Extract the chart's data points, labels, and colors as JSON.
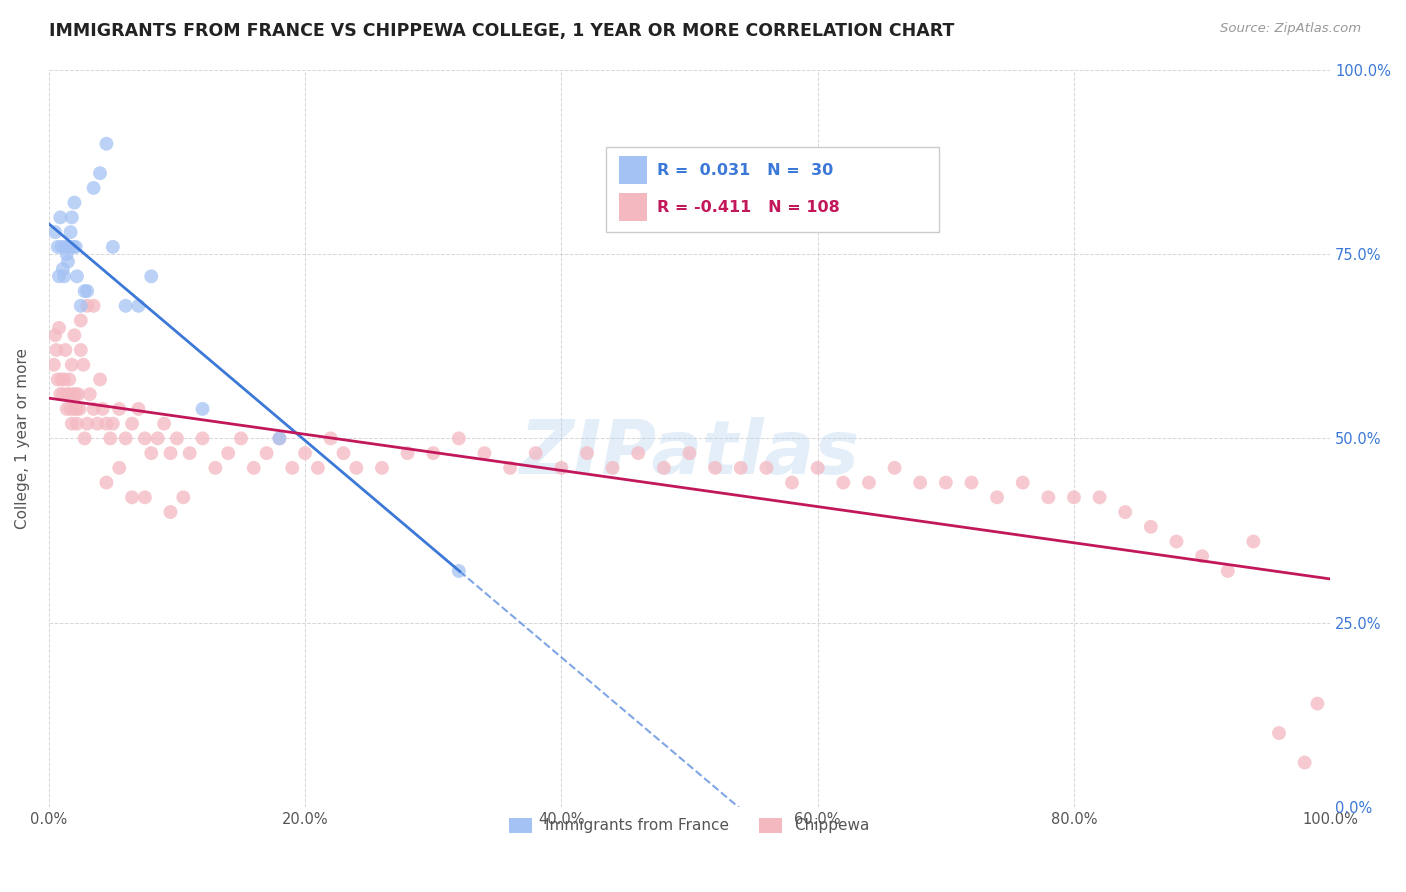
{
  "title": "IMMIGRANTS FROM FRANCE VS CHIPPEWA COLLEGE, 1 YEAR OR MORE CORRELATION CHART",
  "source": "Source: ZipAtlas.com",
  "ylabel": "College, 1 year or more",
  "watermark": "ZIPatlas",
  "blue_R": 0.031,
  "blue_N": 30,
  "pink_R": -0.411,
  "pink_N": 108,
  "blue_label": "Immigrants from France",
  "pink_label": "Chippewa",
  "blue_color": "#a4c2f4",
  "pink_color": "#f4b8c1",
  "blue_line_color": "#3c78d8",
  "pink_line_color": "#c2185b",
  "xmin": 0.0,
  "xmax": 1.0,
  "ymin": 0.0,
  "ymax": 1.0,
  "blue_scatter_x": [
    0.005,
    0.007,
    0.008,
    0.009,
    0.01,
    0.011,
    0.012,
    0.013,
    0.014,
    0.015,
    0.016,
    0.017,
    0.018,
    0.019,
    0.02,
    0.021,
    0.022,
    0.025,
    0.028,
    0.03,
    0.035,
    0.04,
    0.045,
    0.05,
    0.06,
    0.07,
    0.08,
    0.12,
    0.18,
    0.32
  ],
  "blue_scatter_y": [
    0.78,
    0.76,
    0.72,
    0.8,
    0.76,
    0.73,
    0.72,
    0.76,
    0.75,
    0.74,
    0.76,
    0.78,
    0.8,
    0.76,
    0.82,
    0.76,
    0.72,
    0.68,
    0.7,
    0.7,
    0.84,
    0.86,
    0.9,
    0.76,
    0.68,
    0.68,
    0.72,
    0.54,
    0.5,
    0.32
  ],
  "pink_scatter_x": [
    0.004,
    0.005,
    0.006,
    0.007,
    0.008,
    0.009,
    0.01,
    0.011,
    0.012,
    0.013,
    0.014,
    0.015,
    0.016,
    0.017,
    0.018,
    0.019,
    0.02,
    0.021,
    0.022,
    0.023,
    0.024,
    0.025,
    0.027,
    0.03,
    0.032,
    0.035,
    0.038,
    0.04,
    0.042,
    0.045,
    0.048,
    0.05,
    0.055,
    0.06,
    0.065,
    0.07,
    0.075,
    0.08,
    0.085,
    0.09,
    0.095,
    0.1,
    0.11,
    0.12,
    0.13,
    0.14,
    0.15,
    0.16,
    0.17,
    0.18,
    0.19,
    0.2,
    0.21,
    0.22,
    0.23,
    0.24,
    0.26,
    0.28,
    0.3,
    0.32,
    0.34,
    0.36,
    0.38,
    0.4,
    0.42,
    0.44,
    0.46,
    0.48,
    0.5,
    0.52,
    0.54,
    0.56,
    0.58,
    0.6,
    0.62,
    0.64,
    0.66,
    0.68,
    0.7,
    0.72,
    0.74,
    0.76,
    0.78,
    0.8,
    0.82,
    0.84,
    0.86,
    0.88,
    0.9,
    0.92,
    0.94,
    0.96,
    0.98,
    0.99,
    0.02,
    0.025,
    0.03,
    0.035,
    0.015,
    0.018,
    0.022,
    0.028,
    0.045,
    0.055,
    0.065,
    0.075,
    0.095,
    0.105
  ],
  "pink_scatter_y": [
    0.6,
    0.64,
    0.62,
    0.58,
    0.65,
    0.56,
    0.58,
    0.56,
    0.58,
    0.62,
    0.54,
    0.56,
    0.58,
    0.54,
    0.6,
    0.56,
    0.54,
    0.56,
    0.52,
    0.56,
    0.54,
    0.62,
    0.6,
    0.52,
    0.56,
    0.54,
    0.52,
    0.58,
    0.54,
    0.52,
    0.5,
    0.52,
    0.54,
    0.5,
    0.52,
    0.54,
    0.5,
    0.48,
    0.5,
    0.52,
    0.48,
    0.5,
    0.48,
    0.5,
    0.46,
    0.48,
    0.5,
    0.46,
    0.48,
    0.5,
    0.46,
    0.48,
    0.46,
    0.5,
    0.48,
    0.46,
    0.46,
    0.48,
    0.48,
    0.5,
    0.48,
    0.46,
    0.48,
    0.46,
    0.48,
    0.46,
    0.48,
    0.46,
    0.48,
    0.46,
    0.46,
    0.46,
    0.44,
    0.46,
    0.44,
    0.44,
    0.46,
    0.44,
    0.44,
    0.44,
    0.42,
    0.44,
    0.42,
    0.42,
    0.42,
    0.4,
    0.38,
    0.36,
    0.34,
    0.32,
    0.36,
    0.1,
    0.06,
    0.14,
    0.64,
    0.66,
    0.68,
    0.68,
    0.56,
    0.52,
    0.54,
    0.5,
    0.44,
    0.46,
    0.42,
    0.42,
    0.4,
    0.42
  ]
}
